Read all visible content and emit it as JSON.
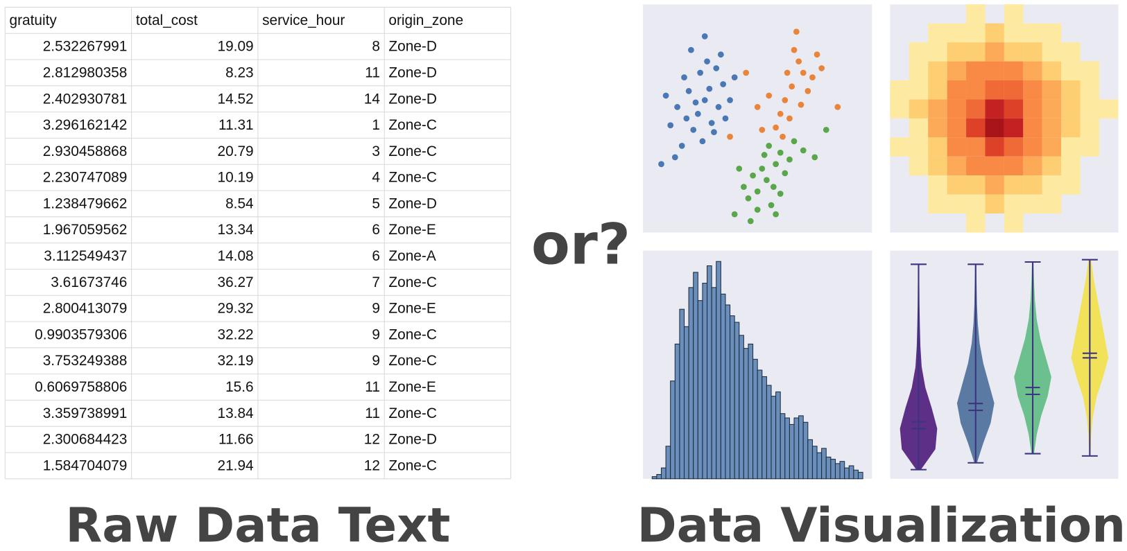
{
  "table": {
    "columns": [
      "gratuity",
      "total_cost",
      "service_hour",
      "origin_zone"
    ],
    "rows": [
      [
        2.532267991,
        19.09,
        8,
        "Zone-D"
      ],
      [
        2.812980358,
        8.23,
        11,
        "Zone-D"
      ],
      [
        2.402930781,
        14.52,
        14,
        "Zone-D"
      ],
      [
        3.296162142,
        11.31,
        1,
        "Zone-C"
      ],
      [
        2.930458868,
        20.79,
        3,
        "Zone-C"
      ],
      [
        2.230747089,
        10.19,
        4,
        "Zone-C"
      ],
      [
        1.238479662,
        8.54,
        5,
        "Zone-D"
      ],
      [
        1.967059562,
        13.34,
        6,
        "Zone-E"
      ],
      [
        3.112549437,
        14.08,
        6,
        "Zone-A"
      ],
      [
        3.61673746,
        36.27,
        7,
        "Zone-C"
      ],
      [
        2.800413079,
        29.32,
        9,
        "Zone-E"
      ],
      [
        0.9903579306,
        32.22,
        9,
        "Zone-C"
      ],
      [
        3.753249388,
        32.19,
        9,
        "Zone-C"
      ],
      [
        0.6069758806,
        15.6,
        11,
        "Zone-E"
      ],
      [
        3.359738991,
        13.84,
        11,
        "Zone-C"
      ],
      [
        2.300684423,
        11.66,
        12,
        "Zone-D"
      ],
      [
        1.584704079,
        21.94,
        12,
        "Zone-C"
      ]
    ]
  },
  "connector": "or?",
  "captions": {
    "left": "Raw Data Text",
    "right": "Data Visualization"
  },
  "chart_data": [
    {
      "type": "scatter",
      "xlim": [
        0,
        100
      ],
      "ylim": [
        0,
        100
      ],
      "series": [
        {
          "color": "#4a78b5",
          "x": [
            27,
            20,
            33,
            25,
            30,
            15,
            35,
            22,
            28,
            18,
            38,
            12,
            24,
            32,
            26,
            10,
            36,
            21,
            29,
            17,
            40,
            23,
            31,
            8,
            14,
            27,
            34,
            19
          ],
          "y": [
            58,
            62,
            55,
            70,
            48,
            55,
            65,
            45,
            75,
            68,
            58,
            47,
            52,
            72,
            40,
            60,
            50,
            80,
            63,
            38,
            68,
            57,
            44,
            30,
            33,
            86,
            78,
            50
          ]
        },
        {
          "color": "#e8853a",
          "x": [
            65,
            70,
            62,
            68,
            60,
            72,
            66,
            58,
            74,
            63,
            55,
            69,
            76,
            61,
            50,
            78,
            67,
            64,
            52,
            85,
            38,
            45
          ],
          "y": [
            64,
            70,
            58,
            75,
            52,
            62,
            80,
            46,
            68,
            70,
            60,
            56,
            78,
            42,
            55,
            72,
            88,
            50,
            45,
            55,
            42,
            70
          ]
        },
        {
          "color": "#5aa64a",
          "x": [
            54,
            58,
            50,
            56,
            48,
            60,
            52,
            46,
            62,
            55,
            44,
            58,
            50,
            40,
            64,
            57,
            42,
            53,
            66,
            70,
            47,
            80,
            75,
            60
          ],
          "y": [
            23,
            30,
            18,
            12,
            25,
            35,
            28,
            15,
            26,
            38,
            20,
            8,
            10,
            8,
            32,
            20,
            28,
            34,
            40,
            36,
            5,
            45,
            33,
            17
          ]
        }
      ]
    },
    {
      "type": "heatmap",
      "colors": [
        "#fff6c8",
        "#fee9a0",
        "#fdcf72",
        "#fcaa58",
        "#f88a45",
        "#ef6a36",
        "#dd4228",
        "#c42222",
        "#a81418"
      ],
      "values": [
        [
          0,
          0,
          0,
          0,
          1,
          0,
          1,
          0,
          0,
          0,
          0,
          0
        ],
        [
          0,
          0,
          1,
          1,
          1,
          2,
          1,
          1,
          1,
          0,
          0,
          0
        ],
        [
          0,
          1,
          1,
          2,
          2,
          3,
          2,
          2,
          1,
          1,
          0,
          0
        ],
        [
          0,
          1,
          2,
          3,
          4,
          4,
          4,
          3,
          2,
          1,
          1,
          0
        ],
        [
          1,
          1,
          2,
          4,
          5,
          6,
          6,
          4,
          3,
          2,
          1,
          0
        ],
        [
          1,
          2,
          3,
          4,
          6,
          8,
          7,
          5,
          3,
          2,
          1,
          1
        ],
        [
          0,
          1,
          3,
          5,
          7,
          9,
          8,
          5,
          3,
          2,
          1,
          0
        ],
        [
          1,
          1,
          2,
          4,
          5,
          7,
          6,
          4,
          3,
          1,
          1,
          0
        ],
        [
          0,
          1,
          2,
          3,
          4,
          4,
          4,
          3,
          2,
          1,
          0,
          0
        ],
        [
          0,
          0,
          1,
          2,
          2,
          3,
          2,
          2,
          1,
          1,
          0,
          0
        ],
        [
          0,
          0,
          1,
          1,
          1,
          2,
          1,
          1,
          1,
          0,
          0,
          0
        ],
        [
          0,
          0,
          0,
          0,
          1,
          0,
          1,
          0,
          0,
          0,
          0,
          0
        ]
      ]
    },
    {
      "type": "histogram",
      "color": "#6a8fbd",
      "xlim": [
        -2,
        48
      ],
      "ylim": [
        0,
        105
      ],
      "bins": [
        0,
        1,
        2,
        3,
        4,
        5,
        6,
        7,
        8,
        9,
        10,
        11,
        12,
        13,
        14,
        15,
        16,
        17,
        18,
        19,
        20,
        21,
        22,
        23,
        24,
        25,
        26,
        27,
        28,
        29,
        30,
        31,
        32,
        33,
        34,
        35,
        36,
        37,
        38,
        39,
        40,
        41,
        42,
        43,
        44,
        45,
        46
      ],
      "counts": [
        1,
        2,
        5,
        15,
        45,
        62,
        78,
        70,
        88,
        95,
        82,
        90,
        98,
        88,
        100,
        85,
        80,
        75,
        72,
        66,
        60,
        62,
        55,
        50,
        47,
        43,
        38,
        40,
        30,
        28,
        25,
        28,
        29,
        26,
        18,
        15,
        12,
        14,
        10,
        9,
        7,
        8,
        5,
        6,
        4,
        3
      ]
    },
    {
      "type": "violin",
      "ylim": [
        0,
        100
      ],
      "line_color": "#3b3580",
      "series": [
        {
          "color": "#5e2f86",
          "min": 4,
          "max": 94,
          "mean": 25,
          "median": 22,
          "density": [
            0.1,
            0.9,
            1,
            0.7,
            0.35,
            0.15,
            0.08,
            0.05,
            0.03,
            0.02,
            0.01
          ]
        },
        {
          "color": "#5a7aa3",
          "min": 7,
          "max": 94,
          "mean": 33,
          "median": 30,
          "density": [
            0.05,
            0.4,
            0.8,
            1,
            0.7,
            0.4,
            0.2,
            0.1,
            0.05,
            0.03,
            0.01
          ]
        },
        {
          "color": "#6cc08e",
          "min": 11,
          "max": 95,
          "mean": 40,
          "median": 37,
          "density": [
            0.05,
            0.2,
            0.45,
            0.8,
            1,
            0.7,
            0.4,
            0.2,
            0.1,
            0.05,
            0.02
          ]
        },
        {
          "color": "#f2e25a",
          "min": 10,
          "max": 96,
          "mean": 55,
          "median": 53,
          "density": [
            0.02,
            0.05,
            0.15,
            0.35,
            0.7,
            1,
            0.8,
            0.6,
            0.4,
            0.2,
            0.05
          ]
        }
      ]
    }
  ]
}
